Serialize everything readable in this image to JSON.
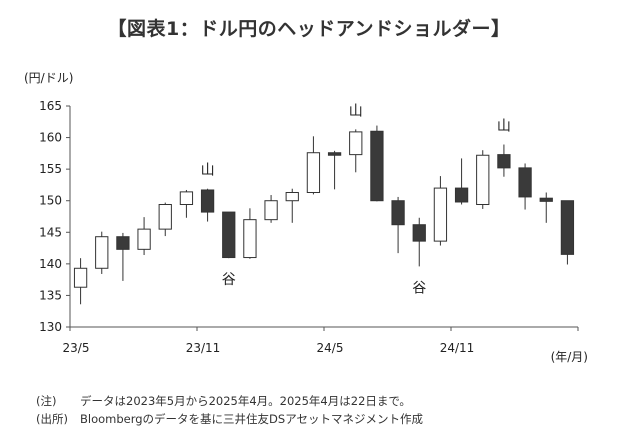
{
  "title": "【図表1：ドル円のヘッドアンドショルダー】",
  "notes": [
    {
      "tag": "(注)",
      "text": "データは2023年5月から2025年4月。2025年4月は22日まで。"
    },
    {
      "tag": "(出所)",
      "text": "Bloombergのデータを基に三井住友DSアセットマネジメント作成"
    }
  ],
  "chart_data": {
    "type": "candlestick",
    "y_unit_label": "(円/ドル)",
    "x_unit_label": "(年/月)",
    "ylim": [
      130,
      165
    ],
    "yticks": [
      130,
      135,
      140,
      145,
      150,
      155,
      160,
      165
    ],
    "xtick_labels": [
      {
        "index": 0,
        "label": "23/5"
      },
      {
        "index": 6,
        "label": "23/11"
      },
      {
        "index": 12,
        "label": "24/5"
      },
      {
        "index": 18,
        "label": "24/11"
      }
    ],
    "candles": [
      {
        "month": "2023-05",
        "open": 136.3,
        "high": 140.9,
        "low": 133.6,
        "close": 139.3
      },
      {
        "month": "2023-06",
        "open": 139.3,
        "high": 145.1,
        "low": 138.4,
        "close": 144.3
      },
      {
        "month": "2023-07",
        "open": 144.3,
        "high": 144.9,
        "low": 137.3,
        "close": 142.3
      },
      {
        "month": "2023-08",
        "open": 142.3,
        "high": 147.4,
        "low": 141.4,
        "close": 145.5
      },
      {
        "month": "2023-09",
        "open": 145.5,
        "high": 149.7,
        "low": 144.4,
        "close": 149.4
      },
      {
        "month": "2023-10",
        "open": 149.4,
        "high": 151.7,
        "low": 147.3,
        "close": 151.4
      },
      {
        "month": "2023-11",
        "open": 151.7,
        "high": 151.9,
        "low": 146.7,
        "close": 148.2
      },
      {
        "month": "2023-12",
        "open": 148.2,
        "high": 148.2,
        "low": 140.9,
        "close": 141.0
      },
      {
        "month": "2024-01",
        "open": 141.0,
        "high": 148.8,
        "low": 140.8,
        "close": 147.0
      },
      {
        "month": "2024-02",
        "open": 147.0,
        "high": 150.9,
        "low": 146.5,
        "close": 150.0
      },
      {
        "month": "2024-03",
        "open": 150.0,
        "high": 151.9,
        "low": 146.5,
        "close": 151.3
      },
      {
        "month": "2024-04",
        "open": 151.3,
        "high": 160.2,
        "low": 151.0,
        "close": 157.6
      },
      {
        "month": "2024-05",
        "open": 157.6,
        "high": 157.9,
        "low": 151.8,
        "close": 157.2
      },
      {
        "month": "2024-06",
        "open": 157.3,
        "high": 161.3,
        "low": 154.5,
        "close": 160.9
      },
      {
        "month": "2024-07",
        "open": 161.0,
        "high": 161.9,
        "low": 149.9,
        "close": 150.0
      },
      {
        "month": "2024-08",
        "open": 150.0,
        "high": 150.6,
        "low": 141.7,
        "close": 146.2
      },
      {
        "month": "2024-09",
        "open": 146.2,
        "high": 147.3,
        "low": 139.6,
        "close": 143.6
      },
      {
        "month": "2024-10",
        "open": 143.6,
        "high": 153.9,
        "low": 142.9,
        "close": 152.0
      },
      {
        "month": "2024-11",
        "open": 152.0,
        "high": 156.7,
        "low": 149.4,
        "close": 149.8
      },
      {
        "month": "2024-12",
        "open": 149.4,
        "high": 158.0,
        "low": 148.7,
        "close": 157.2
      },
      {
        "month": "2025-01",
        "open": 157.3,
        "high": 158.9,
        "low": 153.8,
        "close": 155.2
      },
      {
        "month": "2025-02",
        "open": 155.2,
        "high": 155.9,
        "low": 148.6,
        "close": 150.6
      },
      {
        "month": "2025-03",
        "open": 150.4,
        "high": 151.3,
        "low": 146.5,
        "close": 149.9
      },
      {
        "month": "2025-04",
        "open": 150.0,
        "high": 150.0,
        "low": 139.9,
        "close": 141.5
      }
    ],
    "annotations": [
      {
        "text": "山",
        "index": 6,
        "position": "above"
      },
      {
        "text": "谷",
        "index": 7,
        "position": "below"
      },
      {
        "text": "山",
        "index": 13,
        "position": "above"
      },
      {
        "text": "谷",
        "index": 16,
        "position": "below"
      },
      {
        "text": "山",
        "index": 20,
        "position": "above"
      }
    ],
    "up_color": "#ffffff",
    "down_color": "#3a3a3a",
    "grid": false
  }
}
